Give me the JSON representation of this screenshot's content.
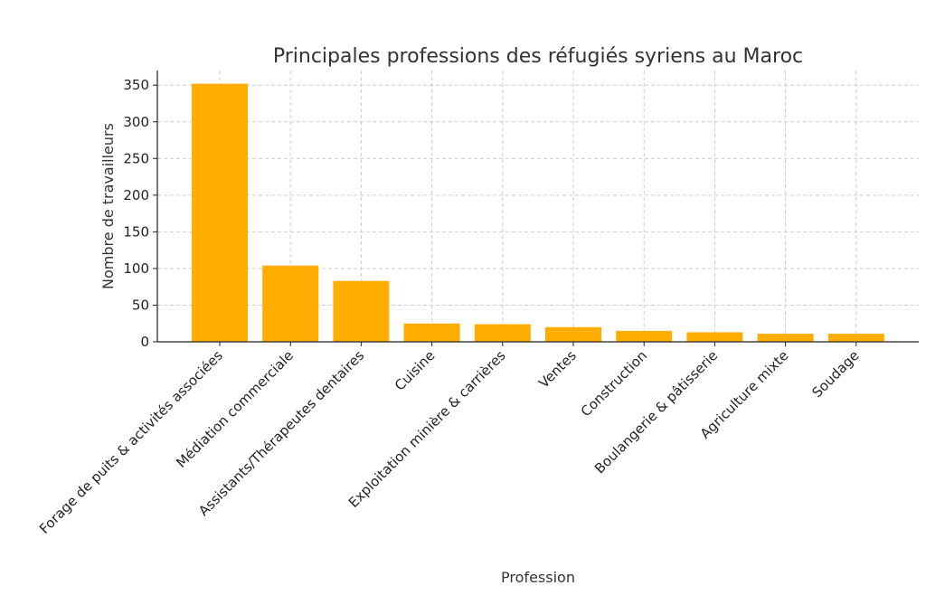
{
  "chart_data": {
    "type": "bar",
    "title": "Principales professions des réfugiés syriens au Maroc",
    "xlabel": "Profession",
    "ylabel": "Nombre de travailleurs",
    "categories": [
      "Forage de puits & activités associées",
      "Médiation commerciale",
      "Assistants/Thérapeutes dentaires",
      "Cuisine",
      "Exploitation minière & carrières",
      "Ventes",
      "Construction",
      "Boulangerie & pâtisserie",
      "Agriculture mixte",
      "Soudage"
    ],
    "values": [
      352,
      104,
      83,
      25,
      24,
      20,
      15,
      13,
      11,
      11
    ],
    "ylim": [
      0,
      370
    ],
    "yticks": [
      0,
      50,
      100,
      150,
      200,
      250,
      300,
      350
    ],
    "grid": true,
    "bar_color": "#FFAE00"
  }
}
